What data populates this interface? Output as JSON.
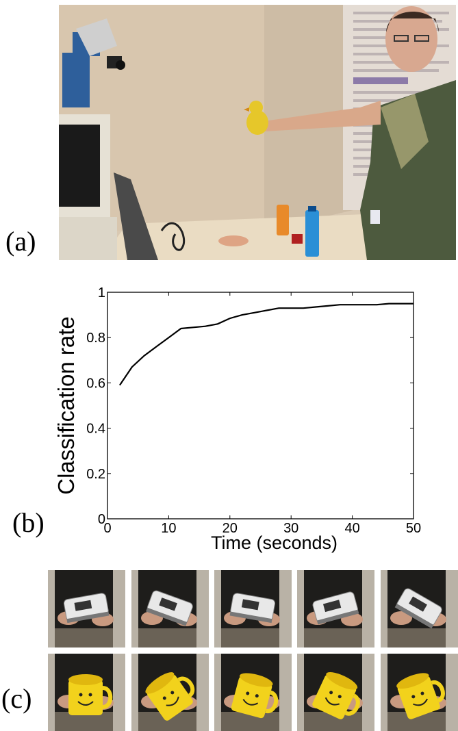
{
  "figure": {
    "label_a": "(a)",
    "label_b": "(b)",
    "label_c": "(c)"
  },
  "scene": {
    "description_icons": [
      "robot-head-icon",
      "monitor-icon",
      "person-icon",
      "duck-toy-icon",
      "bottle-icon"
    ]
  },
  "chart_data": {
    "type": "line",
    "xlabel": "Time (seconds)",
    "ylabel": "Classification rate",
    "xlim": [
      0,
      50
    ],
    "ylim": [
      0,
      1
    ],
    "xticks": [
      0,
      10,
      20,
      30,
      40,
      50
    ],
    "yticks": [
      0,
      0.2,
      0.4,
      0.6,
      0.8,
      1
    ],
    "xtick_labels": [
      "0",
      "10",
      "20",
      "30",
      "40",
      "50"
    ],
    "ytick_labels": [
      "0",
      "0.2",
      "0.4",
      "0.6",
      "0.8",
      "1"
    ],
    "grid": false,
    "series": [
      {
        "x": [
          2,
          4,
          6,
          8,
          10,
          12,
          14,
          16,
          18,
          20,
          22,
          24,
          26,
          28,
          30,
          32,
          34,
          36,
          38,
          40,
          42,
          44,
          46,
          48,
          50
        ],
        "y": [
          0.59,
          0.67,
          0.72,
          0.76,
          0.8,
          0.84,
          0.845,
          0.85,
          0.86,
          0.885,
          0.9,
          0.91,
          0.92,
          0.93,
          0.93,
          0.93,
          0.935,
          0.94,
          0.945,
          0.945,
          0.945,
          0.945,
          0.95,
          0.95,
          0.95
        ]
      }
    ]
  },
  "thumbnails": {
    "row1": [
      "stapler-icon",
      "stapler-icon",
      "stapler-icon",
      "stapler-icon",
      "stapler-icon"
    ],
    "row2": [
      "mug-icon",
      "mug-icon",
      "mug-icon",
      "mug-icon",
      "mug-icon"
    ]
  }
}
